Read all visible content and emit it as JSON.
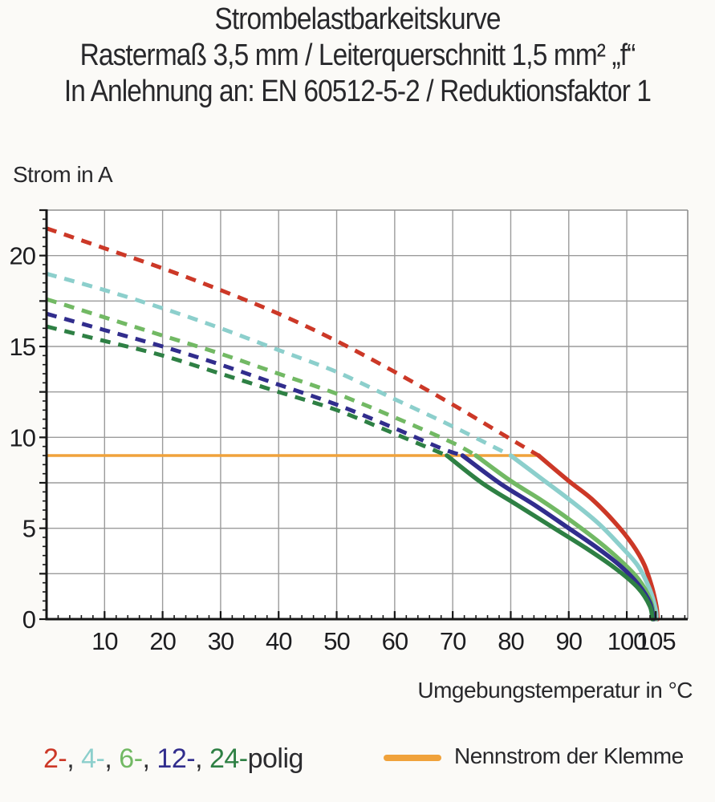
{
  "title": {
    "line1": "Strombelastbarkeitskurve",
    "line2": "Rastermaß 3,5 mm / Leiterquerschnitt 1,5 mm² „f“",
    "line3": "In Anlehnung an: EN 60512-5-2 / Reduktionsfaktor 1"
  },
  "chart_data": {
    "type": "line",
    "x_axis": {
      "label": "Umgebungstemperatur in °C",
      "min": 0,
      "max": 110.5,
      "tick_labels": [
        10,
        20,
        30,
        40,
        50,
        60,
        70,
        80,
        90,
        100,
        105
      ],
      "gridlines": [
        10,
        20,
        30,
        40,
        50,
        60,
        70,
        80,
        90,
        100
      ],
      "minor_tick_step": 2
    },
    "y_axis": {
      "label": "Strom in A",
      "min": 0,
      "max": 22.5,
      "tick_labels": [
        0,
        5,
        10,
        15,
        20
      ],
      "gridline_step": 2.5,
      "major_tick_step": 2.5,
      "minor_tick_step": 0.5
    },
    "grid": true,
    "colors": {
      "grid": "#9b9b9b",
      "frame": "#8f8f8f",
      "axis": "#161616",
      "tick_text": "#1d1d20"
    },
    "rated_current_line": {
      "label": "Nennstrom der Klemme",
      "color": "#f0a23b",
      "y": 9,
      "x_start": 0,
      "x_end": 84.8
    },
    "series": [
      {
        "name": "2-polig",
        "poles": 2,
        "color": "#cc3827",
        "dashed_points": [
          [
            0,
            21.5
          ],
          [
            10,
            20.4
          ],
          [
            20,
            19.3
          ],
          [
            30,
            18.1
          ],
          [
            40,
            16.8
          ],
          [
            50,
            15.3
          ],
          [
            60,
            13.6
          ],
          [
            70,
            11.8
          ],
          [
            80,
            9.9
          ],
          [
            84.8,
            9.0
          ]
        ],
        "solid_points": [
          [
            84.8,
            9.0
          ],
          [
            90,
            7.6
          ],
          [
            94,
            6.6
          ],
          [
            98,
            5.3
          ],
          [
            101,
            4.1
          ],
          [
            103,
            3.0
          ],
          [
            104.3,
            1.8
          ],
          [
            105.1,
            0.7
          ],
          [
            105.3,
            0
          ]
        ]
      },
      {
        "name": "4-polig",
        "poles": 4,
        "color": "#8ccfcc",
        "dashed_points": [
          [
            0,
            19.0
          ],
          [
            10,
            18.1
          ],
          [
            20,
            17.1
          ],
          [
            30,
            16.0
          ],
          [
            40,
            14.8
          ],
          [
            50,
            13.6
          ],
          [
            60,
            12.1
          ],
          [
            70,
            10.6
          ],
          [
            80,
            9.0
          ]
        ],
        "solid_points": [
          [
            80,
            9.0
          ],
          [
            85,
            7.8
          ],
          [
            90,
            6.6
          ],
          [
            95,
            5.3
          ],
          [
            99,
            4.0
          ],
          [
            102,
            2.9
          ],
          [
            104,
            1.6
          ],
          [
            105,
            0.5
          ],
          [
            105.1,
            0
          ]
        ]
      },
      {
        "name": "6-polig",
        "poles": 6,
        "color": "#72b964",
        "dashed_points": [
          [
            0,
            17.6
          ],
          [
            10,
            16.6
          ],
          [
            20,
            15.6
          ],
          [
            30,
            14.6
          ],
          [
            40,
            13.5
          ],
          [
            50,
            12.4
          ],
          [
            60,
            11.1
          ],
          [
            70,
            9.7
          ],
          [
            74,
            9.0
          ]
        ],
        "solid_points": [
          [
            74,
            9.0
          ],
          [
            80,
            7.6
          ],
          [
            85,
            6.6
          ],
          [
            90,
            5.5
          ],
          [
            95,
            4.3
          ],
          [
            99,
            3.2
          ],
          [
            102,
            2.2
          ],
          [
            104,
            1.1
          ],
          [
            104.8,
            0
          ]
        ]
      },
      {
        "name": "12-polig",
        "poles": 12,
        "color": "#312d8d",
        "dashed_points": [
          [
            0,
            16.8
          ],
          [
            10,
            15.9
          ],
          [
            20,
            15.0
          ],
          [
            30,
            14.0
          ],
          [
            40,
            12.9
          ],
          [
            50,
            11.8
          ],
          [
            60,
            10.5
          ],
          [
            68,
            9.4
          ],
          [
            71.7,
            9.0
          ]
        ],
        "solid_points": [
          [
            71.7,
            9.0
          ],
          [
            78,
            7.5
          ],
          [
            84,
            6.3
          ],
          [
            90,
            5.0
          ],
          [
            95,
            3.9
          ],
          [
            99,
            2.9
          ],
          [
            102,
            1.9
          ],
          [
            104,
            0.9
          ],
          [
            104.6,
            0
          ]
        ]
      },
      {
        "name": "24-polig",
        "poles": 24,
        "color": "#2e8044",
        "dashed_points": [
          [
            0,
            16.1
          ],
          [
            10,
            15.3
          ],
          [
            20,
            14.5
          ],
          [
            30,
            13.5
          ],
          [
            40,
            12.5
          ],
          [
            50,
            11.5
          ],
          [
            60,
            10.2
          ],
          [
            66,
            9.4
          ],
          [
            69,
            9.0
          ]
        ],
        "solid_points": [
          [
            69,
            9.0
          ],
          [
            75,
            7.5
          ],
          [
            81,
            6.3
          ],
          [
            87,
            5.1
          ],
          [
            93,
            3.9
          ],
          [
            98,
            2.8
          ],
          [
            102,
            1.7
          ],
          [
            104,
            0.7
          ],
          [
            104.4,
            0
          ]
        ]
      }
    ]
  },
  "legend": {
    "poles_segments": [
      {
        "text": "2-",
        "color": "#cc3827"
      },
      {
        "text": ", ",
        "color": "#2c2c2f"
      },
      {
        "text": "4-",
        "color": "#8ccfcc"
      },
      {
        "text": ", ",
        "color": "#2c2c2f"
      },
      {
        "text": "6-",
        "color": "#72b964"
      },
      {
        "text": ", ",
        "color": "#2c2c2f"
      },
      {
        "text": "12-",
        "color": "#312d8d"
      },
      {
        "text": ", ",
        "color": "#2c2c2f"
      },
      {
        "text": "24-",
        "color": "#2e8044"
      },
      {
        "text": "polig",
        "color": "#2c2c2f"
      }
    ],
    "rated_label": "Nennstrom der Klemme"
  }
}
